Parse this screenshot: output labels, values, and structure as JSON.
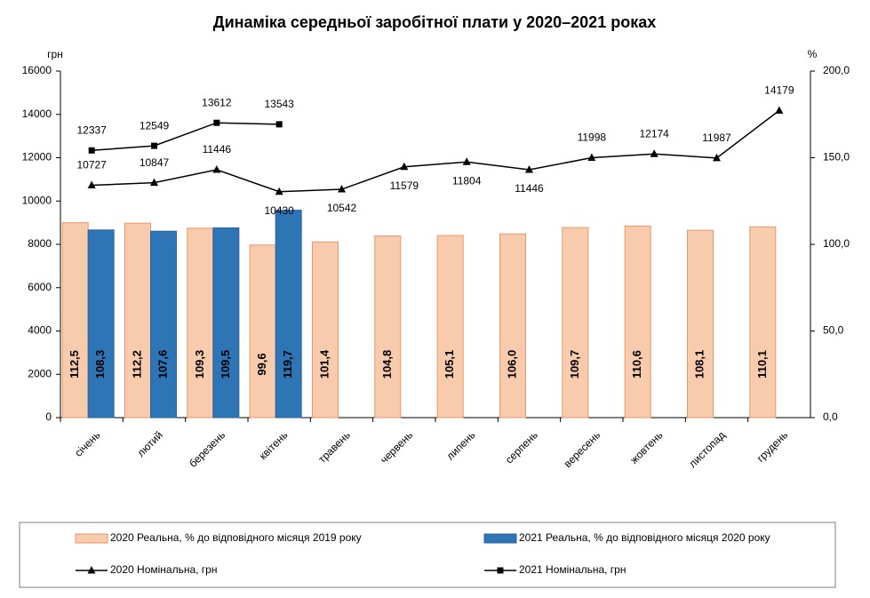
{
  "chart_data": {
    "type": "bar_line",
    "title": "Динаміка середньої заробітної плати у 2020–2021 роках",
    "y_label": "грн",
    "y2_label": "%",
    "categories": [
      "січень",
      "лютий",
      "березень",
      "квітень",
      "травень",
      "червень",
      "липень",
      "серпень",
      "вересень",
      "жовтень",
      "листопад",
      "грудень"
    ],
    "ylim": [
      0,
      16000
    ],
    "yticks": [
      0,
      2000,
      4000,
      6000,
      8000,
      10000,
      12000,
      14000,
      16000
    ],
    "y2lim": [
      0,
      200
    ],
    "y2ticks": [
      {
        "value": 0,
        "label": "0,0"
      },
      {
        "value": 50,
        "label": "50,0"
      },
      {
        "value": 100,
        "label": "100,0"
      },
      {
        "value": 150,
        "label": "150,0"
      },
      {
        "value": 200,
        "label": "200,0"
      }
    ],
    "legend": "bottom",
    "series": [
      {
        "name": "2020 Реальна, % до відповідного місяця 2019 року",
        "type": "bar",
        "axis": "y2",
        "color": "#f8cbad",
        "edge": "#e99668",
        "values": [
          112.5,
          112.2,
          109.3,
          99.6,
          101.4,
          104.8,
          105.1,
          106.0,
          109.7,
          110.6,
          108.1,
          110.1
        ],
        "value_labels": [
          "112,5",
          "112,2",
          "109,3",
          "99,6",
          "101,4",
          "104,8",
          "105,1",
          "106,0",
          "109,7",
          "110,6",
          "108,1",
          "110,1"
        ]
      },
      {
        "name": "2021 Реальна, % до відповідного місяця 2020 року",
        "type": "bar",
        "axis": "y2",
        "color": "#2e75b6",
        "edge": "#2a64a0",
        "values": [
          108.3,
          107.6,
          109.5,
          119.7,
          null,
          null,
          null,
          null,
          null,
          null,
          null,
          null
        ],
        "value_labels": [
          "108,3",
          "107,6",
          "109,5",
          "119,7",
          null,
          null,
          null,
          null,
          null,
          null,
          null,
          null
        ]
      },
      {
        "name": "2020 Номінальна, грн",
        "type": "line",
        "marker": "triangle",
        "color": "#000000",
        "values": [
          10727,
          10847,
          11446,
          10430,
          10542,
          11579,
          11804,
          11446,
          11998,
          12174,
          11987,
          14179
        ]
      },
      {
        "name": "2021 Номінальна, грн",
        "type": "line",
        "marker": "square",
        "color": "#000000",
        "values": [
          12337,
          12549,
          13612,
          13543,
          null,
          null,
          null,
          null,
          null,
          null,
          null,
          null
        ]
      }
    ]
  }
}
